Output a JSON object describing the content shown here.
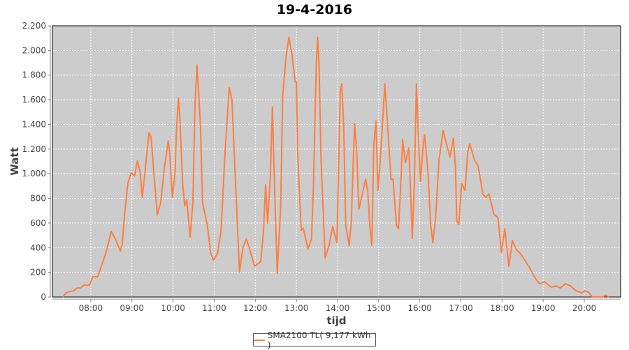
{
  "chart_data": {
    "type": "line",
    "title": "19-4-2016",
    "xlabel": "tijd",
    "ylabel": "Watt",
    "xlim": [
      "07:04",
      "20:53"
    ],
    "ylim": [
      0,
      2200
    ],
    "x_ticks": [
      "08:00",
      "09:00",
      "10:00",
      "11:00",
      "12:00",
      "13:00",
      "14:00",
      "15:00",
      "16:00",
      "17:00",
      "18:00",
      "19:00",
      "20:00"
    ],
    "y_ticks": [
      {
        "value": 0,
        "label": "0"
      },
      {
        "value": 200,
        "label": "200"
      },
      {
        "value": 400,
        "label": "400"
      },
      {
        "value": 600,
        "label": "600"
      },
      {
        "value": 800,
        "label": "800"
      },
      {
        "value": 1000,
        "label": "1.000"
      },
      {
        "value": 1200,
        "label": "1.200"
      },
      {
        "value": 1400,
        "label": "1.400"
      },
      {
        "value": 1600,
        "label": "1.600"
      },
      {
        "value": 1800,
        "label": "1.800"
      },
      {
        "value": 2000,
        "label": "2.000"
      },
      {
        "value": 2200,
        "label": "2.200"
      }
    ],
    "grid": true,
    "legend_position": "bottom",
    "colors": {
      "line": "#ff7f3f",
      "plot_background": "#cccccc",
      "grid": "#ffffff"
    },
    "series": [
      {
        "name": "SMA2100 TL( 9,177 kWh )",
        "points": [
          [
            "07:19",
            0
          ],
          [
            "07:24",
            34
          ],
          [
            "07:29",
            45
          ],
          [
            "07:35",
            50
          ],
          [
            "07:40",
            73
          ],
          [
            "07:45",
            73
          ],
          [
            "07:50",
            96
          ],
          [
            "07:58",
            96
          ],
          [
            "08:03",
            164
          ],
          [
            "08:10",
            164
          ],
          [
            "08:15",
            243
          ],
          [
            "08:22",
            356
          ],
          [
            "08:27",
            469
          ],
          [
            "08:30",
            531
          ],
          [
            "08:36",
            469
          ],
          [
            "08:43",
            373
          ],
          [
            "08:46",
            430
          ],
          [
            "08:49",
            655
          ],
          [
            "08:54",
            921
          ],
          [
            "08:59",
            1006
          ],
          [
            "09:04",
            983
          ],
          [
            "09:08",
            1107
          ],
          [
            "09:12",
            1011
          ],
          [
            "09:15",
            808
          ],
          [
            "09:19",
            1011
          ],
          [
            "09:25",
            1333
          ],
          [
            "09:28",
            1294
          ],
          [
            "09:32",
            1011
          ],
          [
            "09:37",
            667
          ],
          [
            "09:42",
            768
          ],
          [
            "09:47",
            1034
          ],
          [
            "09:53",
            1266
          ],
          [
            "09:55",
            1181
          ],
          [
            "09:59",
            808
          ],
          [
            "10:03",
            1011
          ],
          [
            "10:05",
            1350
          ],
          [
            "10:08",
            1616
          ],
          [
            "10:10",
            1446
          ],
          [
            "10:14",
            921
          ],
          [
            "10:17",
            740
          ],
          [
            "10:20",
            785
          ],
          [
            "10:25",
            486
          ],
          [
            "10:29",
            768
          ],
          [
            "10:32",
            1559
          ],
          [
            "10:35",
            1881
          ],
          [
            "10:40",
            1390
          ],
          [
            "10:43",
            768
          ],
          [
            "10:50",
            582
          ],
          [
            "10:55",
            356
          ],
          [
            "10:59",
            299
          ],
          [
            "11:05",
            356
          ],
          [
            "11:10",
            542
          ],
          [
            "11:16",
            1181
          ],
          [
            "11:22",
            1700
          ],
          [
            "11:26",
            1599
          ],
          [
            "11:31",
            955
          ],
          [
            "11:37",
            203
          ],
          [
            "11:42",
            401
          ],
          [
            "11:47",
            469
          ],
          [
            "11:52",
            384
          ],
          [
            "11:59",
            249
          ],
          [
            "12:08",
            288
          ],
          [
            "12:12",
            542
          ],
          [
            "12:15",
            910
          ],
          [
            "12:18",
            599
          ],
          [
            "12:22",
            994
          ],
          [
            "12:25",
            1542
          ],
          [
            "12:28",
            921
          ],
          [
            "12:32",
            192
          ],
          [
            "12:37",
            729
          ],
          [
            "12:40",
            1633
          ],
          [
            "12:45",
            1955
          ],
          [
            "12:49",
            2107
          ],
          [
            "12:54",
            1955
          ],
          [
            "12:58",
            1746
          ],
          [
            "13:00",
            1746
          ],
          [
            "13:02",
            1147
          ],
          [
            "13:07",
            542
          ],
          [
            "13:10",
            559
          ],
          [
            "13:17",
            390
          ],
          [
            "13:22",
            469
          ],
          [
            "13:25",
            921
          ],
          [
            "13:29",
            1898
          ],
          [
            "13:31",
            2107
          ],
          [
            "13:33",
            1881
          ],
          [
            "13:36",
            1107
          ],
          [
            "13:42",
            316
          ],
          [
            "13:48",
            430
          ],
          [
            "13:53",
            571
          ],
          [
            "13:59",
            441
          ],
          [
            "14:01",
            921
          ],
          [
            "14:04",
            1672
          ],
          [
            "14:06",
            1729
          ],
          [
            "14:09",
            1390
          ],
          [
            "14:12",
            582
          ],
          [
            "14:17",
            418
          ],
          [
            "14:20",
            599
          ],
          [
            "14:23",
            1107
          ],
          [
            "14:25",
            1407
          ],
          [
            "14:28",
            1181
          ],
          [
            "14:31",
            712
          ],
          [
            "14:35",
            808
          ],
          [
            "14:41",
            955
          ],
          [
            "14:44",
            865
          ],
          [
            "14:47",
            582
          ],
          [
            "14:50",
            418
          ],
          [
            "14:53",
            1237
          ],
          [
            "14:56",
            1429
          ],
          [
            "14:59",
            865
          ],
          [
            "15:01",
            1011
          ],
          [
            "15:05",
            1350
          ],
          [
            "15:09",
            1729
          ],
          [
            "15:13",
            1390
          ],
          [
            "15:18",
            955
          ],
          [
            "15:21",
            955
          ],
          [
            "15:26",
            582
          ],
          [
            "15:29",
            554
          ],
          [
            "15:33",
            1011
          ],
          [
            "15:35",
            1277
          ],
          [
            "15:39",
            1090
          ],
          [
            "15:44",
            1209
          ],
          [
            "15:49",
            475
          ],
          [
            "15:52",
            921
          ],
          [
            "15:55",
            1729
          ],
          [
            "15:57",
            1446
          ],
          [
            "16:01",
            938
          ],
          [
            "16:05",
            1237
          ],
          [
            "16:07",
            1316
          ],
          [
            "16:12",
            1011
          ],
          [
            "16:16",
            582
          ],
          [
            "16:19",
            441
          ],
          [
            "16:23",
            638
          ],
          [
            "16:28",
            1107
          ],
          [
            "16:34",
            1350
          ],
          [
            "16:40",
            1220
          ],
          [
            "16:44",
            1136
          ],
          [
            "16:49",
            1288
          ],
          [
            "16:52",
            1051
          ],
          [
            "16:54",
            616
          ],
          [
            "16:57",
            588
          ],
          [
            "17:01",
            921
          ],
          [
            "17:06",
            865
          ],
          [
            "17:10",
            1181
          ],
          [
            "17:13",
            1243
          ],
          [
            "17:20",
            1107
          ],
          [
            "17:25",
            1068
          ],
          [
            "17:32",
            836
          ],
          [
            "17:36",
            808
          ],
          [
            "17:41",
            836
          ],
          [
            "17:48",
            672
          ],
          [
            "17:54",
            644
          ],
          [
            "17:59",
            362
          ],
          [
            "18:04",
            554
          ],
          [
            "18:10",
            249
          ],
          [
            "18:15",
            458
          ],
          [
            "18:21",
            384
          ],
          [
            "18:28",
            345
          ],
          [
            "18:39",
            249
          ],
          [
            "18:49",
            147
          ],
          [
            "18:55",
            107
          ],
          [
            "19:02",
            124
          ],
          [
            "19:12",
            79
          ],
          [
            "19:19",
            90
          ],
          [
            "19:25",
            73
          ],
          [
            "19:32",
            107
          ],
          [
            "19:40",
            90
          ],
          [
            "19:48",
            50
          ],
          [
            "19:56",
            34
          ],
          [
            "20:01",
            50
          ],
          [
            "20:06",
            40
          ],
          [
            "20:12",
            0
          ],
          [
            "20:27",
            0
          ],
          [
            "20:31",
            17
          ],
          [
            "20:36",
            0
          ]
        ]
      }
    ]
  }
}
